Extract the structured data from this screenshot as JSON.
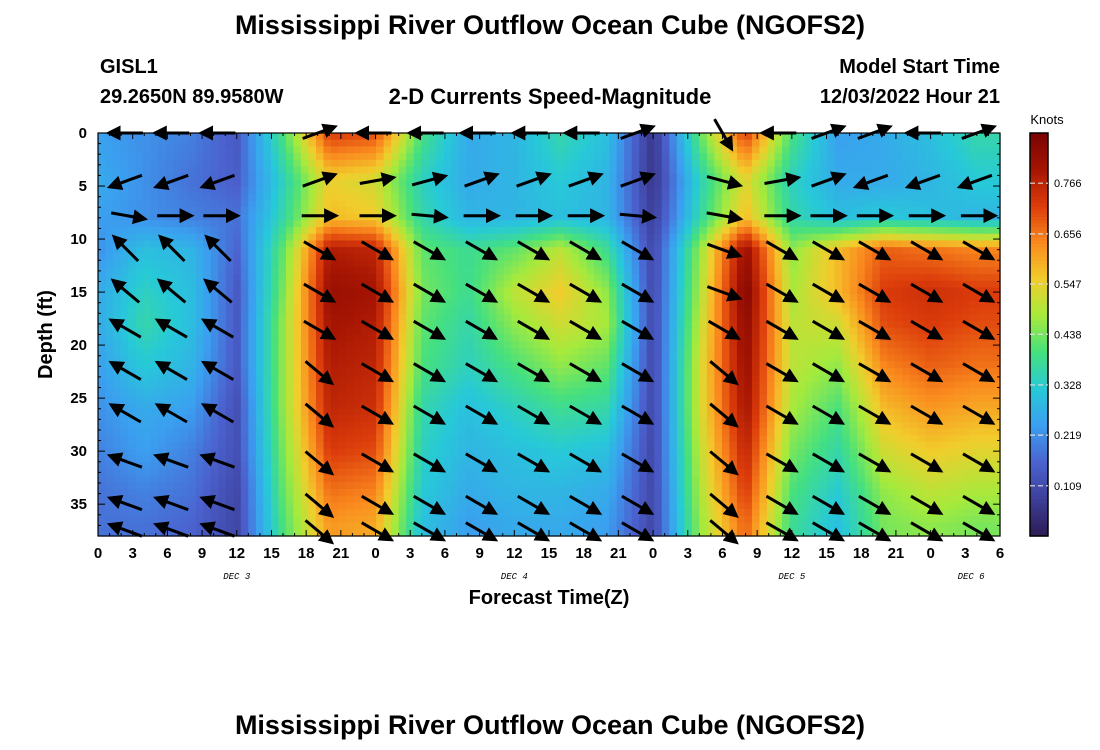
{
  "header": {
    "title": "Mississippi River Outflow Ocean Cube (NGOFS2)",
    "station_id": "GISL1",
    "station_coords": "29.2650N  89.9580W",
    "product": "2-D Currents Speed-Magnitude",
    "model_start_label": "Model Start Time",
    "model_start_value": "12/03/2022 Hour 21"
  },
  "footer": {
    "title": "Mississippi River Outflow Ocean Cube (NGOFS2)"
  },
  "colors": {
    "colormap": [
      "#2d1b54",
      "#3d3f99",
      "#4b62cf",
      "#3b9ff0",
      "#27c9d8",
      "#45e07f",
      "#a6ea3c",
      "#f1cd2c",
      "#fa8a1e",
      "#dc3c0b",
      "#a61503",
      "#7a0403"
    ],
    "arrow": "#000000"
  },
  "chart_data": {
    "type": "heatmap",
    "xlabel": "Forecast Time(Z)",
    "ylabel": "Depth (ft)",
    "xlim": [
      0,
      78
    ],
    "ylim": [
      38,
      0
    ],
    "x_ticks": [
      0,
      3,
      6,
      9,
      12,
      15,
      18,
      21,
      24,
      27,
      30,
      33,
      36,
      39,
      42,
      45,
      48,
      51,
      54,
      57,
      60,
      63,
      66,
      69,
      72,
      75,
      78
    ],
    "x_tick_labels": [
      "0",
      "3",
      "6",
      "9",
      "12",
      "15",
      "18",
      "21",
      "0",
      "3",
      "6",
      "9",
      "12",
      "15",
      "18",
      "21",
      "0",
      "3",
      "6",
      "9",
      "12",
      "15",
      "18",
      "21",
      "0",
      "3",
      "6"
    ],
    "y_ticks": [
      0,
      5,
      10,
      15,
      20,
      25,
      30,
      35
    ],
    "y_tick_labels": [
      "0",
      "5",
      "10",
      "15",
      "20",
      "25",
      "30",
      "35"
    ],
    "day_labels": [
      {
        "x": 12,
        "label": "DEC 3"
      },
      {
        "x": 36,
        "label": "DEC 4"
      },
      {
        "x": 60,
        "label": "DEC 5"
      },
      {
        "x": 75.5,
        "label": "DEC 6"
      }
    ],
    "colorbar": {
      "title": "Knots",
      "range": [
        0,
        0.875
      ],
      "ticks": [
        0.109,
        0.219,
        0.328,
        0.438,
        0.547,
        0.656,
        0.766
      ],
      "tick_labels": [
        "0.109",
        "0.219",
        "0.328",
        "0.438",
        "0.547",
        "0.656",
        "0.766"
      ]
    },
    "depths_ft": [
      0,
      4.5,
      8,
      11,
      15,
      18,
      22,
      26,
      30,
      34,
      37
    ],
    "times_hr": [
      0,
      4,
      8,
      12,
      16,
      20,
      24,
      28,
      32,
      36,
      40,
      44,
      48,
      52,
      56,
      60,
      64,
      68,
      72,
      76
    ],
    "speed_knots": [
      [
        0.24,
        0.22,
        0.2,
        0.14,
        0.4,
        0.72,
        0.7,
        0.4,
        0.26,
        0.28,
        0.36,
        0.3,
        0.06,
        0.42,
        0.72,
        0.4,
        0.24,
        0.26,
        0.3,
        0.36
      ],
      [
        0.26,
        0.22,
        0.18,
        0.15,
        0.34,
        0.55,
        0.52,
        0.34,
        0.26,
        0.28,
        0.32,
        0.28,
        0.06,
        0.34,
        0.54,
        0.34,
        0.26,
        0.26,
        0.28,
        0.32
      ],
      [
        0.24,
        0.22,
        0.2,
        0.18,
        0.36,
        0.58,
        0.56,
        0.36,
        0.28,
        0.28,
        0.3,
        0.28,
        0.08,
        0.36,
        0.58,
        0.36,
        0.3,
        0.32,
        0.3,
        0.28
      ],
      [
        0.22,
        0.3,
        0.28,
        0.16,
        0.42,
        0.78,
        0.76,
        0.42,
        0.38,
        0.42,
        0.5,
        0.38,
        0.1,
        0.46,
        0.82,
        0.46,
        0.58,
        0.68,
        0.66,
        0.64
      ],
      [
        0.26,
        0.34,
        0.3,
        0.14,
        0.44,
        0.82,
        0.8,
        0.44,
        0.38,
        0.5,
        0.56,
        0.46,
        0.1,
        0.48,
        0.86,
        0.48,
        0.58,
        0.72,
        0.74,
        0.72
      ],
      [
        0.26,
        0.36,
        0.3,
        0.14,
        0.46,
        0.8,
        0.78,
        0.42,
        0.36,
        0.46,
        0.52,
        0.48,
        0.1,
        0.5,
        0.84,
        0.5,
        0.52,
        0.7,
        0.72,
        0.7
      ],
      [
        0.24,
        0.32,
        0.28,
        0.14,
        0.46,
        0.78,
        0.76,
        0.4,
        0.34,
        0.4,
        0.46,
        0.42,
        0.1,
        0.52,
        0.82,
        0.5,
        0.46,
        0.64,
        0.68,
        0.66
      ],
      [
        0.22,
        0.26,
        0.24,
        0.12,
        0.46,
        0.76,
        0.74,
        0.36,
        0.3,
        0.34,
        0.38,
        0.36,
        0.1,
        0.52,
        0.8,
        0.48,
        0.4,
        0.58,
        0.62,
        0.6
      ],
      [
        0.2,
        0.24,
        0.2,
        0.12,
        0.44,
        0.72,
        0.7,
        0.34,
        0.28,
        0.3,
        0.32,
        0.3,
        0.1,
        0.5,
        0.76,
        0.44,
        0.36,
        0.52,
        0.56,
        0.54
      ],
      [
        0.18,
        0.2,
        0.18,
        0.1,
        0.42,
        0.66,
        0.64,
        0.32,
        0.26,
        0.28,
        0.28,
        0.26,
        0.1,
        0.48,
        0.72,
        0.4,
        0.32,
        0.46,
        0.5,
        0.48
      ],
      [
        0.18,
        0.18,
        0.16,
        0.1,
        0.4,
        0.62,
        0.6,
        0.3,
        0.24,
        0.26,
        0.26,
        0.24,
        0.1,
        0.46,
        0.68,
        0.38,
        0.3,
        0.44,
        0.46,
        0.44
      ]
    ],
    "vector_times_hr": [
      2.5,
      6.5,
      10.5,
      19,
      24,
      28.5,
      33,
      37.5,
      42,
      46.5,
      54,
      59,
      63,
      67,
      71.5,
      76
    ],
    "vector_depths_ft": [
      0,
      4.5,
      7.8,
      11,
      15,
      18.5,
      22.5,
      26.5,
      31,
      35,
      37.5
    ],
    "vector_direction_deg": [
      [
        180,
        180,
        180,
        20,
        180,
        180,
        180,
        180,
        180,
        20,
        300,
        180,
        20,
        20,
        180,
        20
      ],
      [
        200,
        200,
        200,
        20,
        10,
        15,
        20,
        20,
        20,
        20,
        345,
        10,
        20,
        200,
        200,
        200
      ],
      [
        350,
        0,
        0,
        0,
        0,
        355,
        0,
        0,
        0,
        355,
        350,
        0,
        0,
        0,
        0,
        0
      ],
      [
        135,
        135,
        135,
        330,
        330,
        330,
        330,
        330,
        330,
        330,
        340,
        330,
        330,
        330,
        330,
        330
      ],
      [
        140,
        140,
        140,
        330,
        330,
        330,
        330,
        330,
        330,
        330,
        340,
        330,
        330,
        330,
        330,
        330
      ],
      [
        150,
        150,
        150,
        330,
        330,
        330,
        330,
        330,
        330,
        330,
        330,
        330,
        330,
        330,
        330,
        330
      ],
      [
        150,
        150,
        150,
        320,
        330,
        330,
        330,
        330,
        330,
        330,
        320,
        330,
        330,
        330,
        330,
        330
      ],
      [
        150,
        150,
        150,
        320,
        330,
        330,
        330,
        330,
        330,
        330,
        320,
        330,
        330,
        330,
        330,
        330
      ],
      [
        160,
        160,
        160,
        320,
        330,
        330,
        330,
        330,
        330,
        330,
        320,
        330,
        330,
        330,
        330,
        330
      ],
      [
        160,
        160,
        160,
        320,
        330,
        330,
        330,
        330,
        330,
        330,
        320,
        330,
        330,
        330,
        330,
        330
      ],
      [
        160,
        160,
        160,
        320,
        330,
        330,
        330,
        330,
        330,
        330,
        320,
        330,
        330,
        330,
        330,
        330
      ]
    ]
  }
}
